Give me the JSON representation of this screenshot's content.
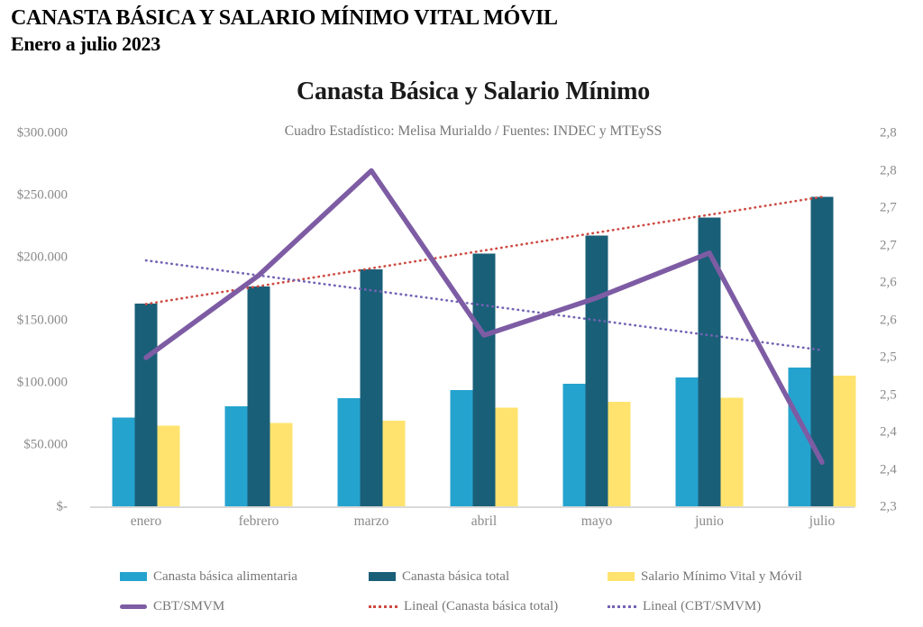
{
  "page": {
    "header_line1": "CANASTA BÁSICA Y SALARIO MÍNIMO VITAL MÓVIL",
    "header_line2": "Enero a julio 2023"
  },
  "chart": {
    "title": "Canasta Básica y Salario Mínimo",
    "subtitle": "Cuadro Estadístico: Melisa Murialdo / Fuentes: INDEC y MTEySS"
  },
  "colors": {
    "cba_bar": "#25A3CF",
    "cbt_bar": "#1A5F78",
    "smvm_bar": "#FFE36E",
    "ratio_line": "#7D5CA4",
    "cbt_trend": "#CC4B42",
    "ratio_trend": "#7462B4",
    "axis_line": "#D9D9D9",
    "axis_text": "#8A8A8A",
    "subtitle_text": "#767676"
  },
  "chart_data": {
    "type": "bar",
    "subtype": "combo-bar-line-dual-axis",
    "title": "Canasta Básica y Salario Mínimo",
    "subtitle": "Cuadro Estadístico: Melisa Murialdo / Fuentes: INDEC y MTEySS",
    "categories": [
      "enero",
      "febrero",
      "marzo",
      "abril",
      "mayo",
      "junio",
      "julio"
    ],
    "bar_series": [
      {
        "name": "Canasta básica alimentaria",
        "axis": "left",
        "color": "#25A3CF",
        "values": [
          72000,
          81000,
          87500,
          94000,
          99000,
          104000,
          112000
        ]
      },
      {
        "name": "Canasta básica total",
        "axis": "left",
        "color": "#1A5F78",
        "values": [
          163500,
          177000,
          191000,
          203500,
          218000,
          232500,
          249000
        ]
      },
      {
        "name": "Salario Mínimo Vital y Móvil",
        "axis": "left",
        "color": "#FFE36E",
        "values": [
          65400,
          67700,
          69500,
          80000,
          84500,
          88000,
          105500
        ]
      }
    ],
    "line_series": [
      {
        "name": "CBT/SMVM",
        "axis": "right",
        "color": "#7D5CA4",
        "style": "solid",
        "values": [
          2.5,
          2.61,
          2.75,
          2.53,
          2.58,
          2.64,
          2.36
        ]
      }
    ],
    "trend_lines": [
      {
        "name": "Lineal (Canasta básica total)",
        "axis": "left",
        "color": "#CC4B42",
        "style": "dotted",
        "start_value": 163000,
        "end_value": 249000
      },
      {
        "name": "Lineal (CBT/SMVM)",
        "axis": "right",
        "color": "#7462B4",
        "style": "dotted",
        "start_value": 2.63,
        "end_value": 2.51
      }
    ],
    "left_axis": {
      "min": 0,
      "max": 300000,
      "tick_labels": [
        "$300.000",
        "$250.000",
        "$200.000",
        "$150.000",
        "$100.000",
        "$50.000",
        "$-"
      ]
    },
    "right_axis": {
      "min": 2.3,
      "max": 2.8,
      "tick_labels": [
        "2,8",
        "2,8",
        "2,7",
        "2,7",
        "2,6",
        "2,6",
        "2,5",
        "2,5",
        "2,4",
        "2,4",
        "2,3"
      ]
    },
    "grid": false,
    "legend_position": "bottom"
  },
  "legend": {
    "row1": [
      {
        "label": "Canasta básica alimentaria"
      },
      {
        "label": "Canasta básica total"
      },
      {
        "label": "Salario Mínimo Vital y Móvil"
      }
    ],
    "row2": [
      {
        "label": "CBT/SMVM"
      },
      {
        "label": "Lineal (Canasta básica total)"
      },
      {
        "label": "Lineal (CBT/SMVM)"
      }
    ]
  }
}
